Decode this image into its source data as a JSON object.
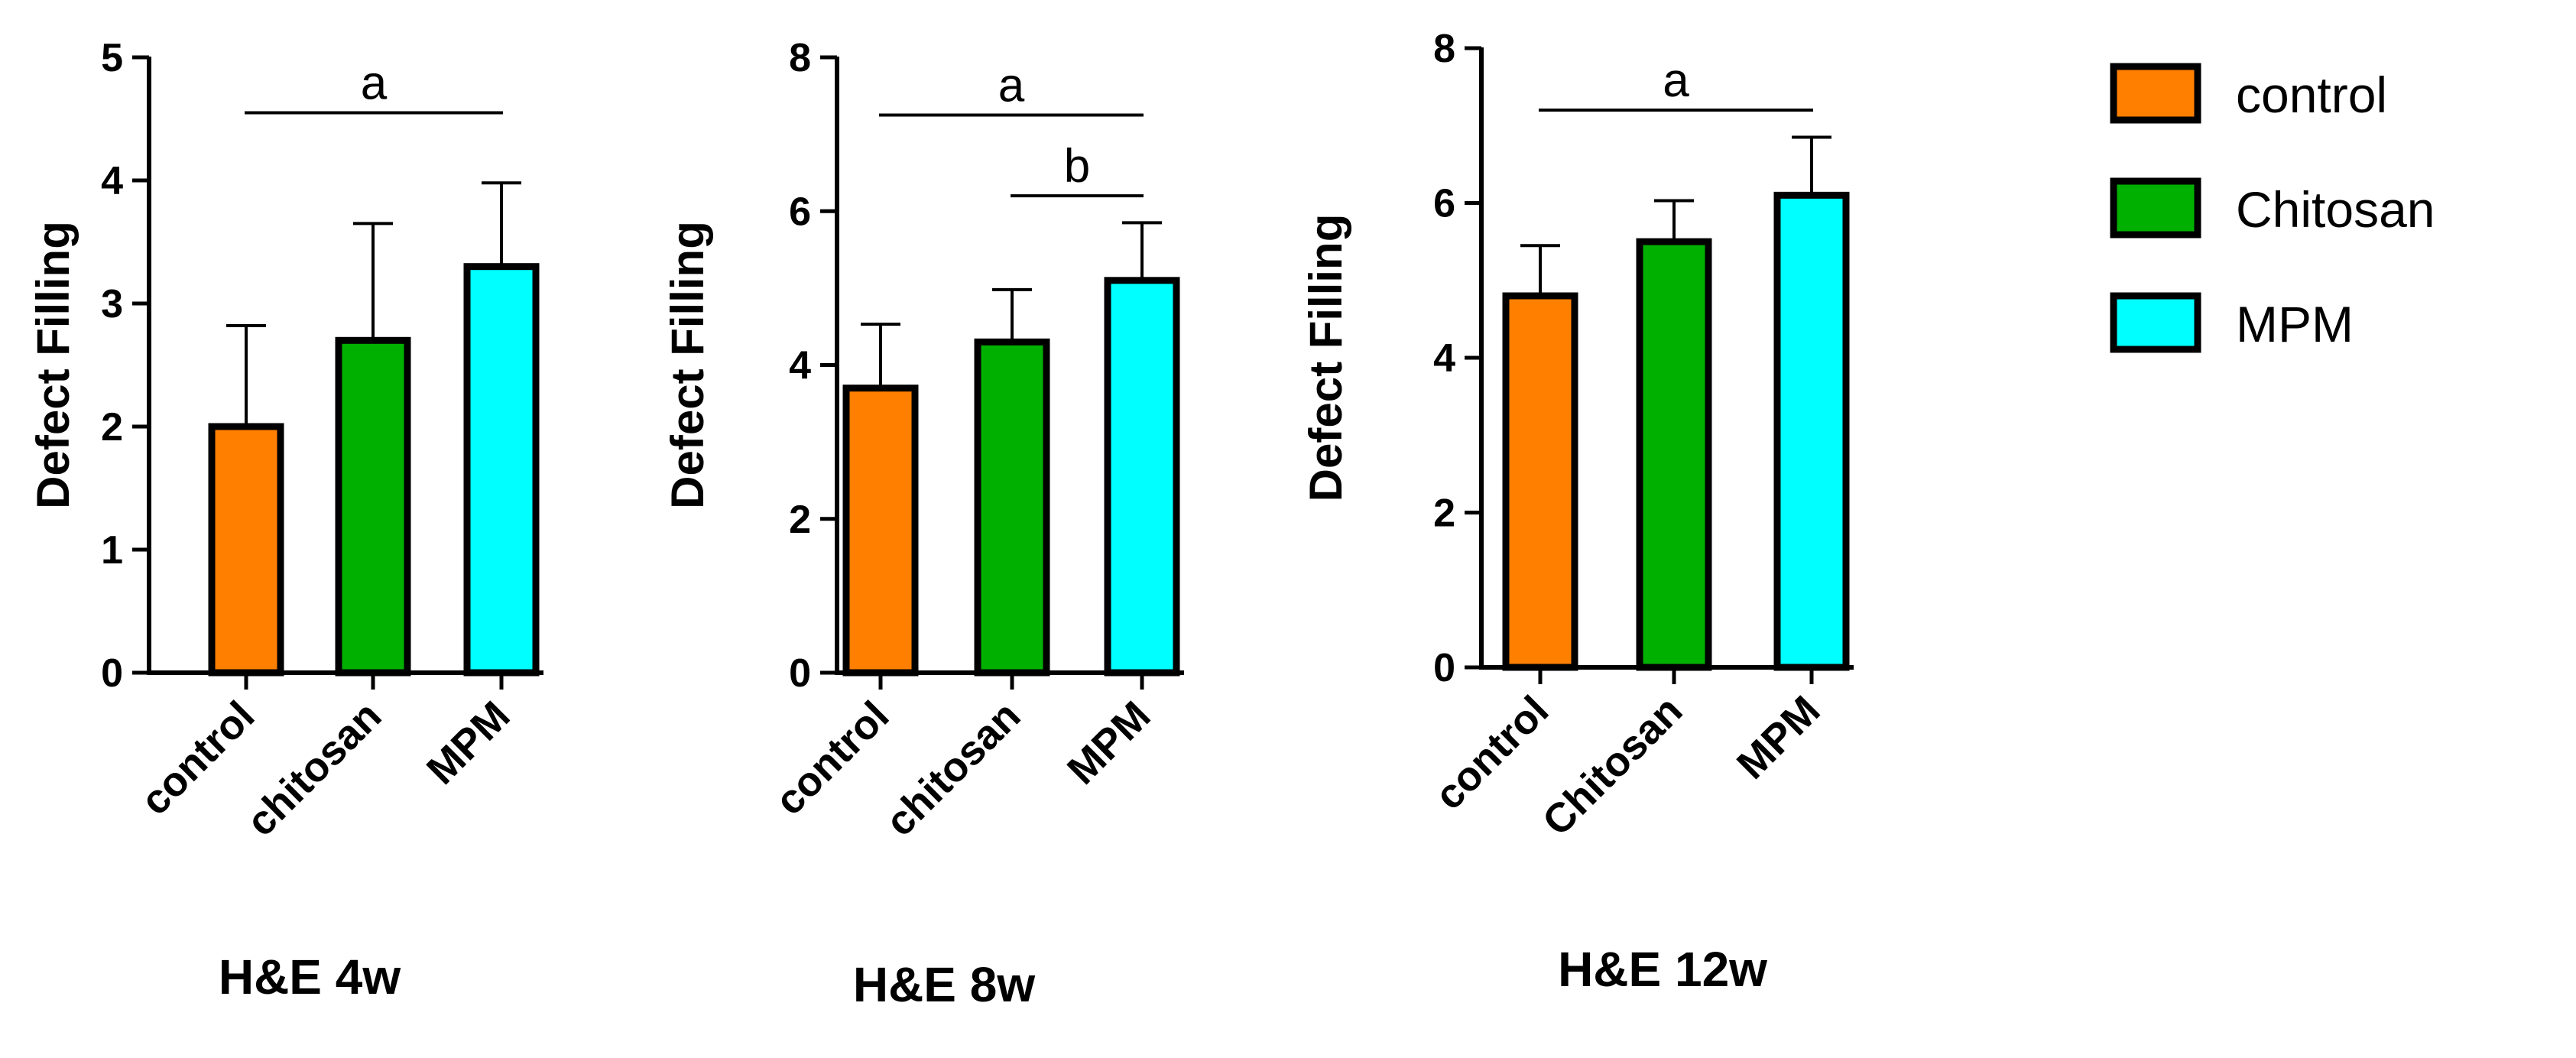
{
  "colors": {
    "control": "#ff7f00",
    "chitosan": "#00b000",
    "mpm": "#00ffff",
    "ink": "#000000"
  },
  "chart_data": [
    {
      "type": "bar",
      "title": "H&E 4w",
      "ylabel": "Defect Filling",
      "xlabel": "",
      "categories": [
        "control",
        "chitosan",
        "MPM"
      ],
      "values": [
        2.0,
        2.7,
        3.3
      ],
      "errors": [
        0.82,
        0.95,
        0.68
      ],
      "ylim": [
        0,
        5
      ],
      "yticks": [
        0,
        1,
        2,
        3,
        4,
        5
      ],
      "significance": [
        {
          "label": "a",
          "from": 0,
          "to": 2,
          "level": 4.55
        }
      ]
    },
    {
      "type": "bar",
      "title": "H&E 8w",
      "ylabel": "Defect Filling",
      "xlabel": "",
      "categories": [
        "control",
        "chitosan",
        "MPM"
      ],
      "values": [
        3.7,
        4.3,
        5.1
      ],
      "errors": [
        0.83,
        0.68,
        0.75
      ],
      "ylim": [
        0,
        8
      ],
      "yticks": [
        0,
        2,
        4,
        6,
        8
      ],
      "significance": [
        {
          "label": "a",
          "from": 0,
          "to": 2,
          "level": 7.25
        },
        {
          "label": "b",
          "from": 1,
          "to": 2,
          "level": 6.2
        }
      ]
    },
    {
      "type": "bar",
      "title": "H&E 12w",
      "ylabel": "Defect Filling",
      "xlabel": "",
      "categories": [
        "control",
        "Chitosan",
        "MPM"
      ],
      "values": [
        4.8,
        5.5,
        6.1
      ],
      "errors": [
        0.65,
        0.53,
        0.75
      ],
      "ylim": [
        0,
        8
      ],
      "yticks": [
        0,
        2,
        4,
        6,
        8
      ],
      "significance": [
        {
          "label": "a",
          "from": 0,
          "to": 2,
          "level": 7.2
        }
      ]
    }
  ],
  "legend": {
    "position": "right",
    "items": [
      {
        "label": "control",
        "color": "#ff7f00"
      },
      {
        "label": "Chitosan",
        "color": "#00b000"
      },
      {
        "label": "MPM",
        "color": "#00ffff"
      }
    ]
  }
}
